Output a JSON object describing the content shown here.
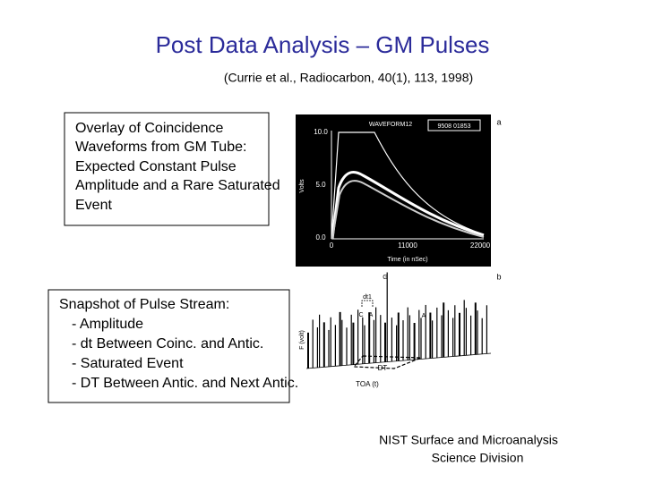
{
  "title": "Post Data Analysis – GM Pulses",
  "citation": "(Currie et al., Radiocarbon, 40(1), 113, 1998)",
  "box1": {
    "lines": [
      "Overlay of Coincidence",
      "Waveforms from GM Tube:",
      "Expected Constant Pulse",
      "Amplitude and a Rare Saturated",
      "Event"
    ]
  },
  "box2": {
    "lines": [
      "Snapshot of Pulse Stream:",
      "- Amplitude",
      "- dt Between Coinc. and Antic.",
      "- Saturated Event",
      "- DT Between Antic. and Next Antic."
    ]
  },
  "figure_a": {
    "label": "a",
    "header": "WAVEFORM12",
    "id": "9508 01853",
    "y_label": "Volts",
    "y_ticks": [
      "10.0",
      "5.0",
      "0.0"
    ],
    "x_ticks": [
      "0",
      "11000",
      "22000"
    ],
    "x_label": "Time (in nSec)"
  },
  "figure_b": {
    "label": "b",
    "markers": [
      "G",
      "dt1",
      "C",
      "A",
      "A",
      "DT"
    ],
    "y_label": "F (volt)",
    "x_label": "TOA (t)"
  },
  "footer": {
    "lines": [
      "NIST Surface and Microanalysis",
      "Science Division"
    ]
  }
}
